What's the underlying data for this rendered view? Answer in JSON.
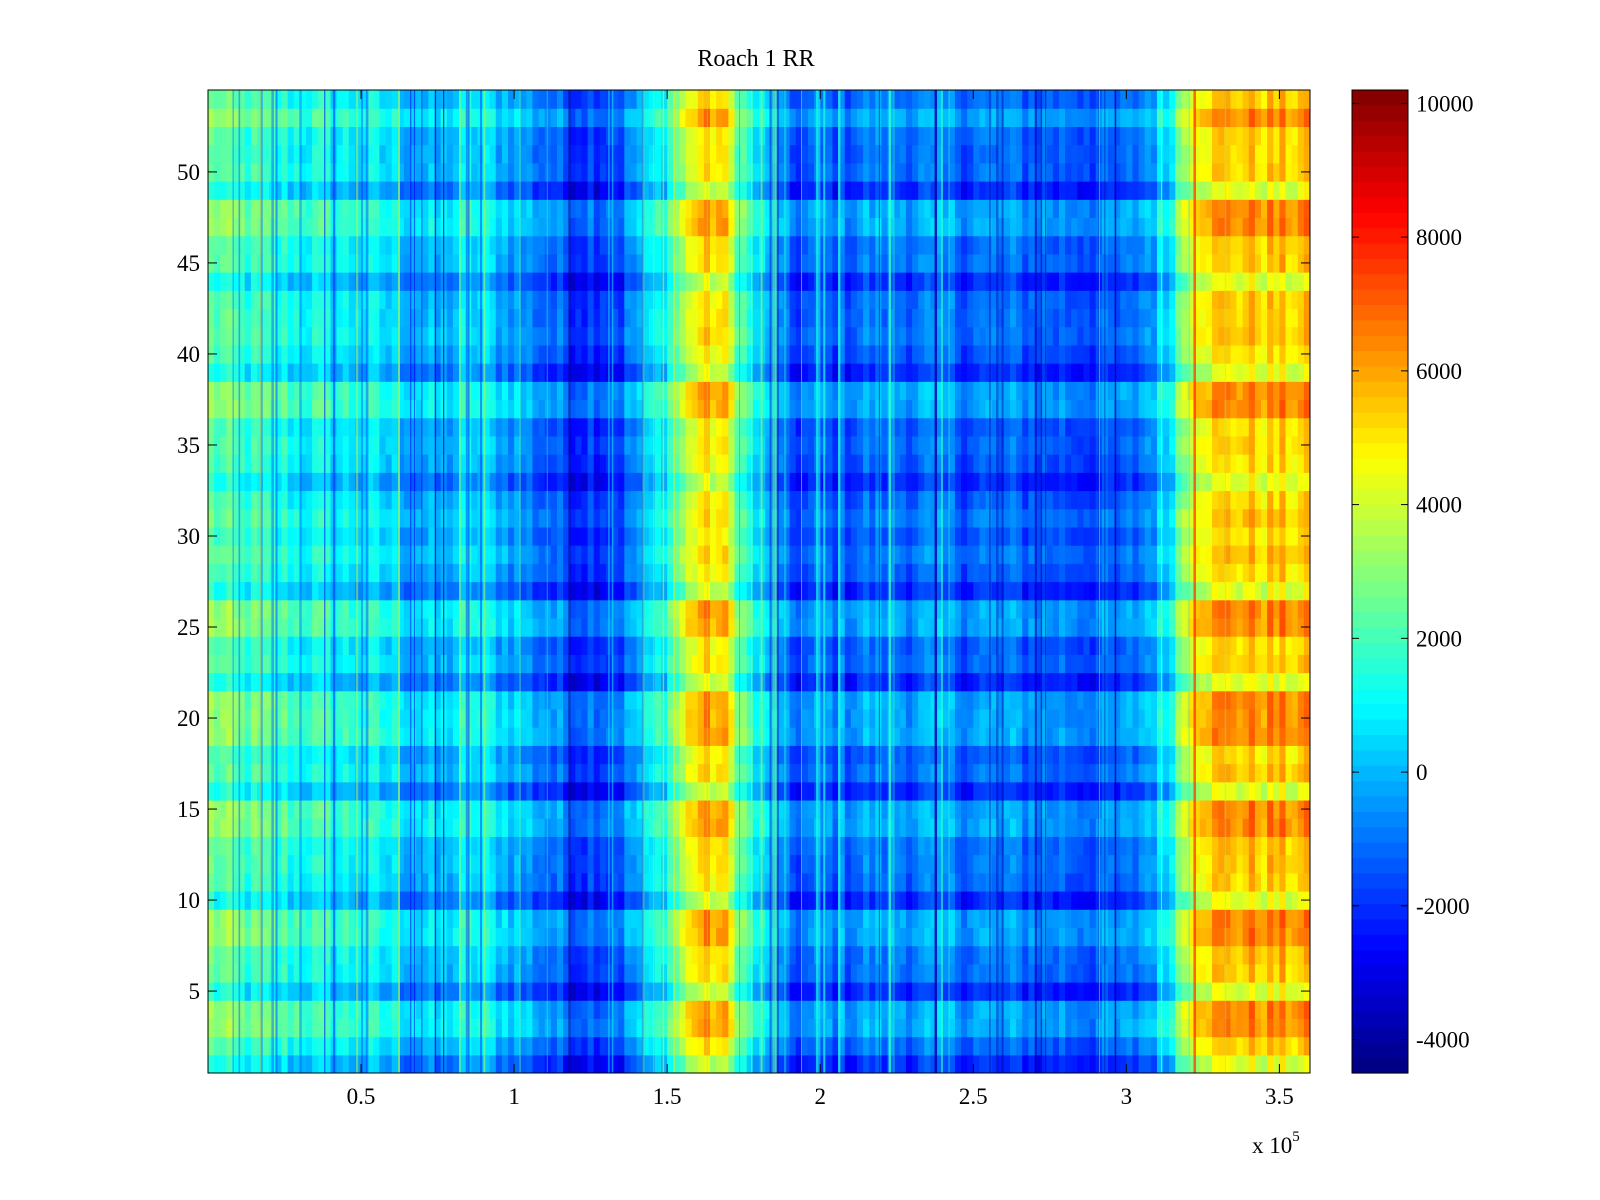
{
  "chart_data": {
    "type": "heatmap",
    "title": "Roach 1 RR",
    "xlabel": "",
    "ylabel": "",
    "x_multiplier_label": "x 10",
    "x_multiplier_exponent": "5",
    "xlim": [
      0,
      3.6
    ],
    "ylim": [
      0.5,
      54.5
    ],
    "x_ticks": [
      0.5,
      1,
      1.5,
      2,
      2.5,
      3,
      3.5
    ],
    "x_tick_labels": [
      "0.5",
      "1",
      "1.5",
      "2",
      "2.5",
      "3",
      "3.5"
    ],
    "y_ticks": [
      5,
      10,
      15,
      20,
      25,
      30,
      35,
      40,
      45,
      50
    ],
    "y_tick_labels": [
      "5",
      "10",
      "15",
      "20",
      "25",
      "30",
      "35",
      "40",
      "45",
      "50"
    ],
    "rows": 54,
    "colormap": "jet",
    "clim": [
      -4500,
      10200
    ],
    "colorbar_ticks": [
      10000,
      8000,
      6000,
      4000,
      2000,
      0,
      -2000,
      -4000
    ],
    "colorbar_tick_labels": [
      "10000",
      "8000",
      "6000",
      "4000",
      "2000",
      "0",
      "-2000",
      "-4000"
    ],
    "column_profile": [
      {
        "x": 0.0,
        "value": 2400
      },
      {
        "x": 0.1,
        "value": 1800
      },
      {
        "x": 0.3,
        "value": 1200
      },
      {
        "x": 0.55,
        "value": 600
      },
      {
        "x": 0.75,
        "value": -400
      },
      {
        "x": 0.85,
        "value": 700
      },
      {
        "x": 1.0,
        "value": -300
      },
      {
        "x": 1.2,
        "value": -1800
      },
      {
        "x": 1.35,
        "value": -1500
      },
      {
        "x": 1.5,
        "value": 1500
      },
      {
        "x": 1.6,
        "value": 5000
      },
      {
        "x": 1.68,
        "value": 4900
      },
      {
        "x": 1.78,
        "value": 800
      },
      {
        "x": 1.9,
        "value": -1700
      },
      {
        "x": 2.2,
        "value": -900
      },
      {
        "x": 2.6,
        "value": -1200
      },
      {
        "x": 3.0,
        "value": -1500
      },
      {
        "x": 3.13,
        "value": 500
      },
      {
        "x": 3.22,
        "value": 5000
      },
      {
        "x": 3.35,
        "value": 5400
      },
      {
        "x": 3.6,
        "value": 5200
      }
    ],
    "hot_rows": [
      3,
      4,
      8,
      9,
      14,
      15,
      19,
      20,
      21,
      25,
      26,
      37,
      38,
      47,
      48,
      53
    ],
    "cool_rows": [
      1,
      5,
      10,
      16,
      22,
      27,
      33,
      39,
      44,
      49
    ]
  }
}
